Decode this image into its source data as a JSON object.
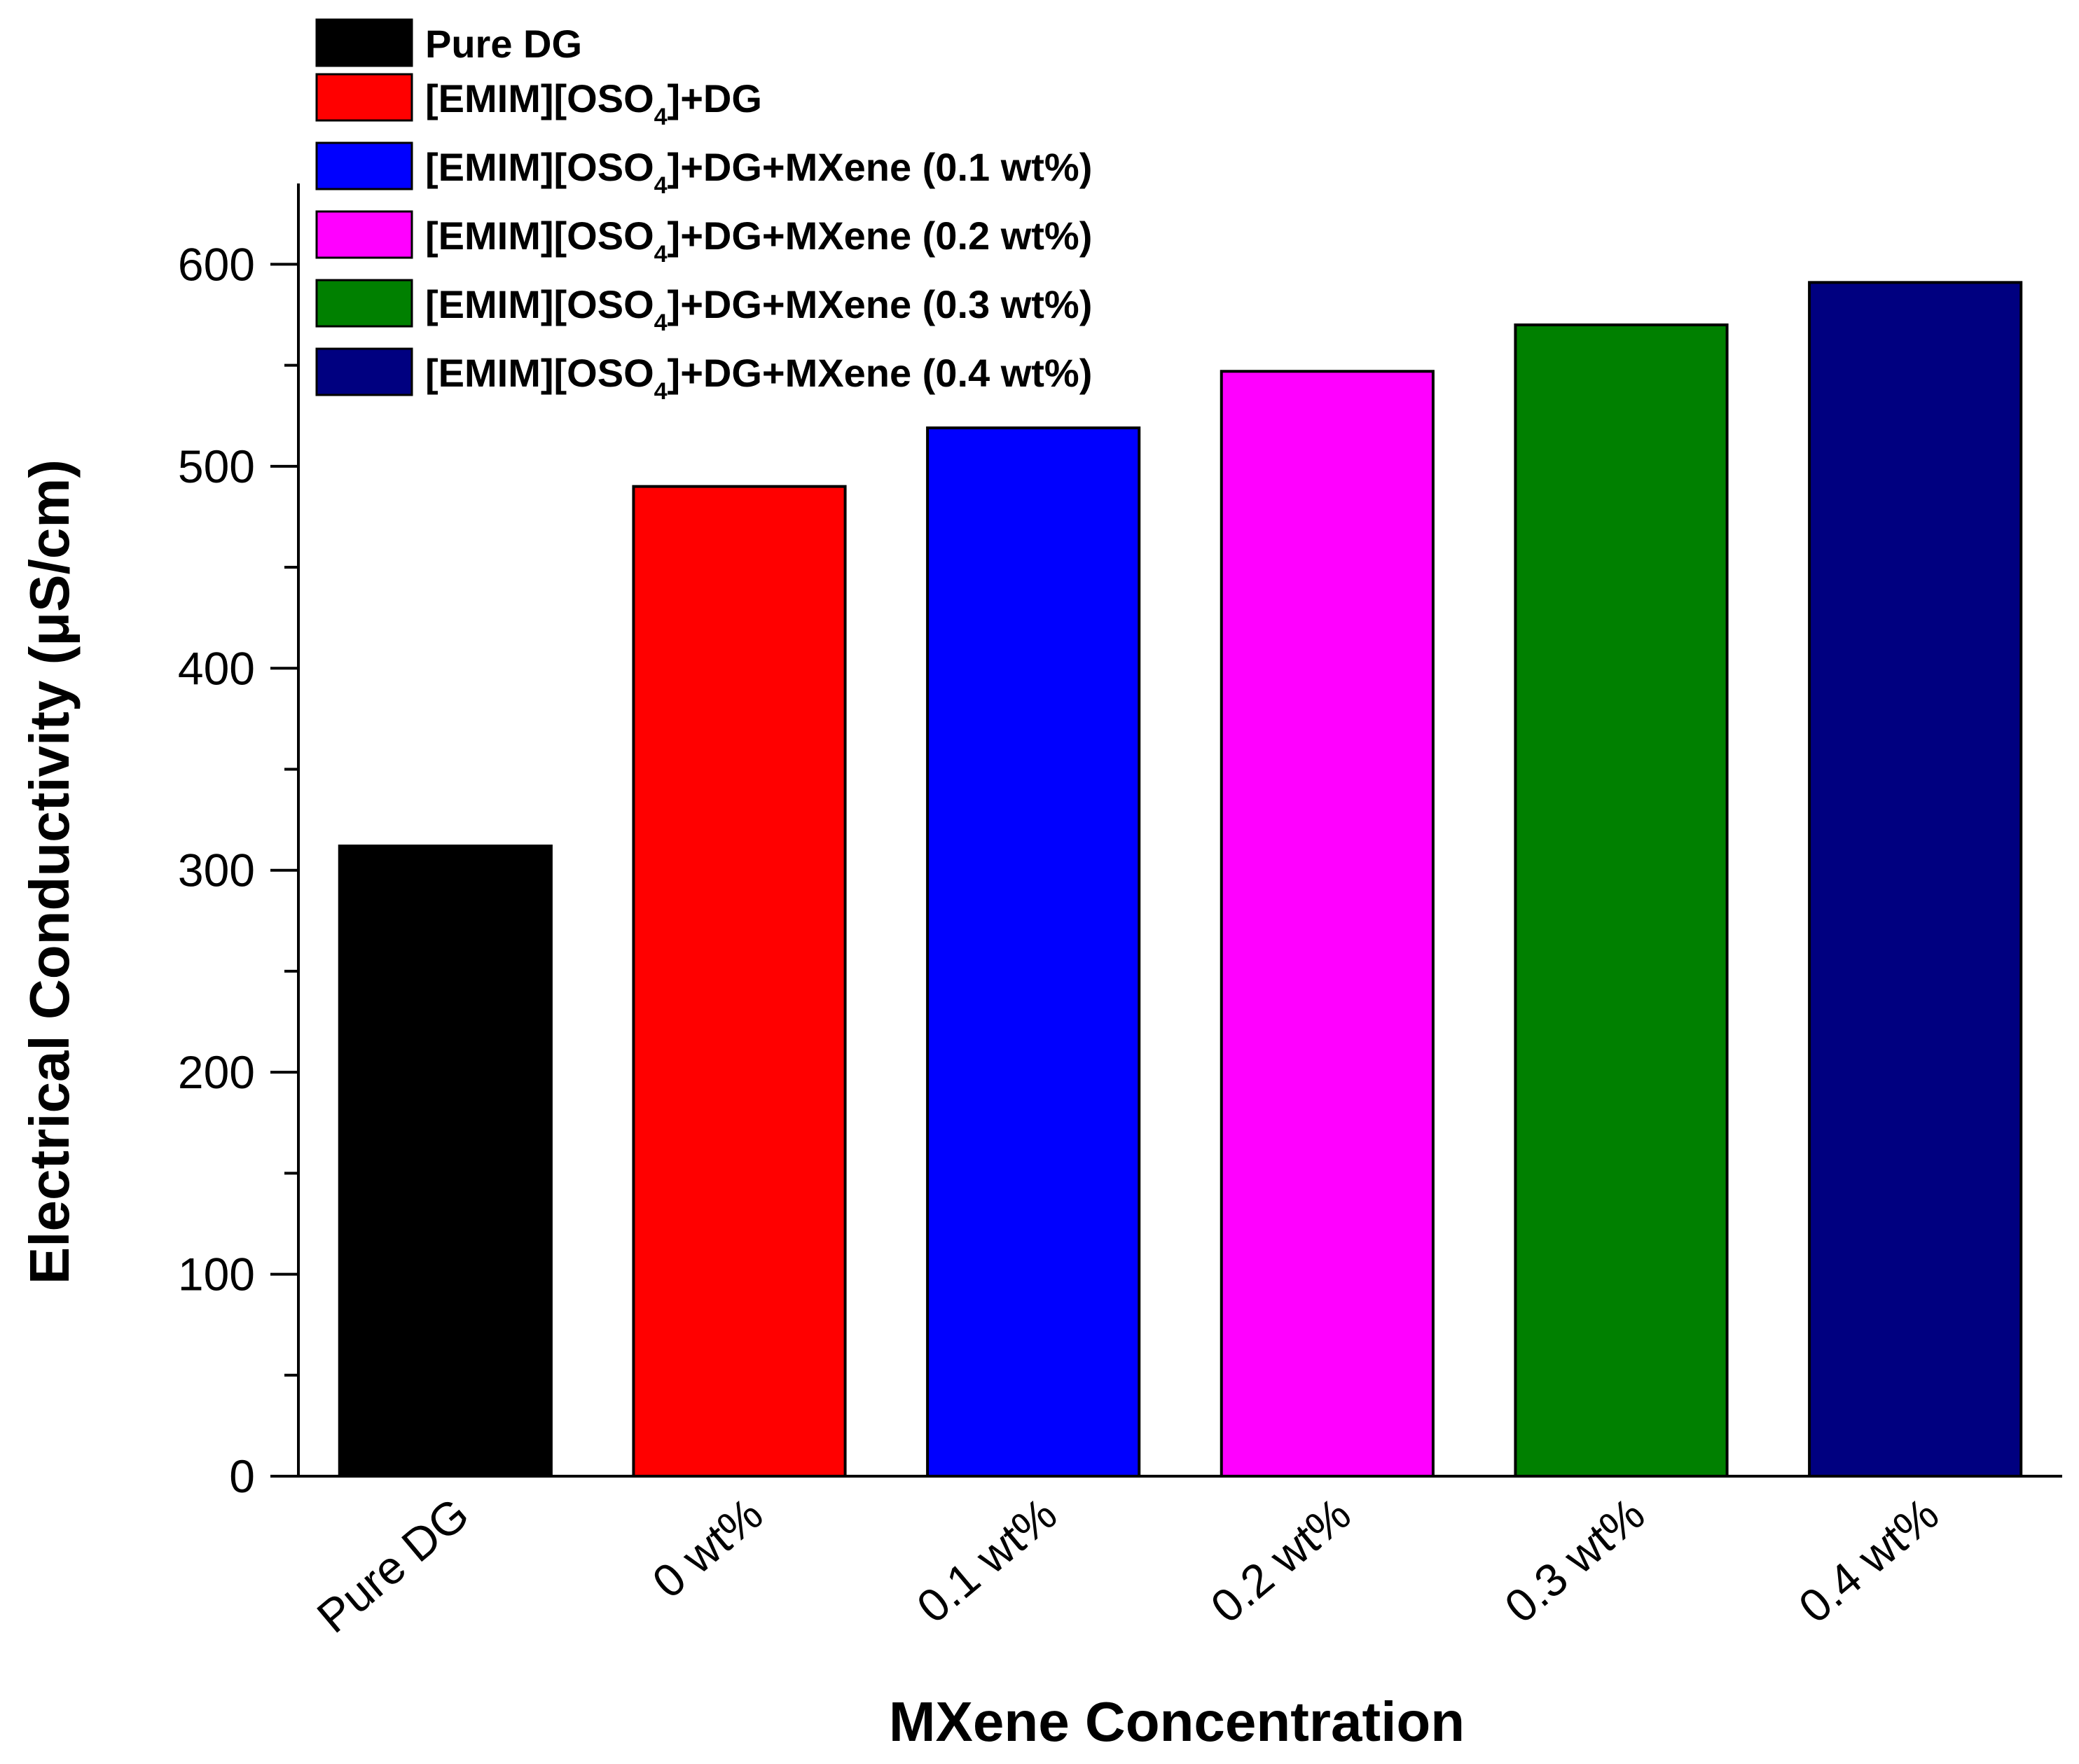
{
  "chart_data": {
    "type": "bar",
    "title": "",
    "xlabel": "MXene Concentration",
    "ylabel": "Electrical Conductivity (μS/cm)",
    "ylim": [
      0,
      640
    ],
    "yticks": [
      0,
      100,
      200,
      300,
      400,
      500,
      600
    ],
    "grid": false,
    "legend_position": "top-left",
    "categories": [
      "Pure DG",
      "0 wt%",
      "0.1 wt%",
      "0.2 wt%",
      "0.3 wt%",
      "0.4 wt%"
    ],
    "values": [
      312,
      490,
      519,
      547,
      570,
      591
    ],
    "colors": [
      "#000000",
      "#ff0000",
      "#0000ff",
      "#ff00ff",
      "#008000",
      "#000080"
    ],
    "legend": [
      {
        "pre": "Pure DG",
        "sub": "",
        "post": ""
      },
      {
        "pre": "[EMIM][OSO",
        "sub": "4",
        "post": "]+DG"
      },
      {
        "pre": "[EMIM][OSO",
        "sub": "4",
        "post": "]+DG+MXene (0.1 wt%)"
      },
      {
        "pre": "[EMIM][OSO",
        "sub": "4",
        "post": "]+DG+MXene (0.2 wt%)"
      },
      {
        "pre": "[EMIM][OSO",
        "sub": "4",
        "post": "]+DG+MXene (0.3 wt%)"
      },
      {
        "pre": "[EMIM][OSO",
        "sub": "4",
        "post": "]+DG+MXene (0.4 wt%)"
      }
    ]
  }
}
